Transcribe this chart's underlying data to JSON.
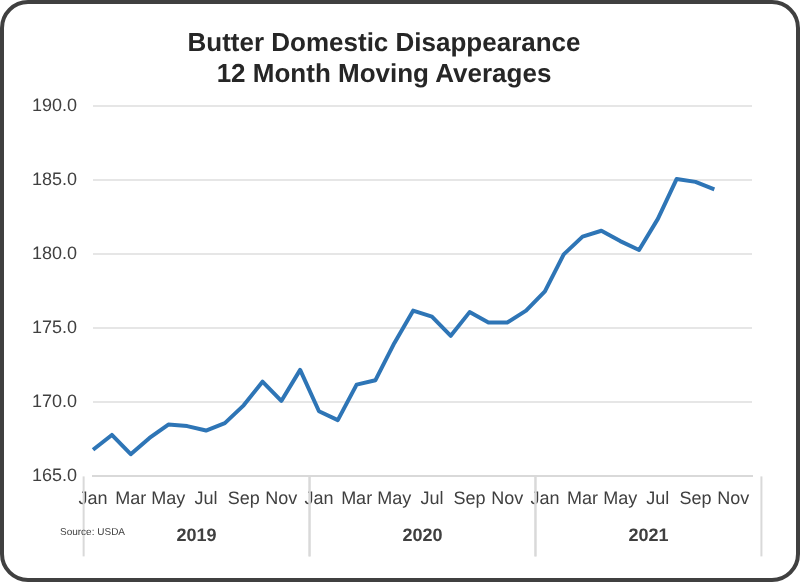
{
  "chart_data": {
    "type": "line",
    "title": "Butter Domestic Disappearance\n12 Month Moving Averages",
    "categories": [
      "Jan",
      null,
      "Mar",
      null,
      "May",
      null,
      "Jul",
      null,
      "Sep",
      null,
      "Nov",
      null,
      "Jan",
      null,
      "Mar",
      null,
      "May",
      null,
      "Jul",
      null,
      "Sep",
      null,
      "Nov",
      null,
      "Jan",
      null,
      "Mar",
      null,
      "May",
      null,
      "Jul",
      null,
      "Sep",
      null,
      "Nov",
      null
    ],
    "series": [
      {
        "color": "#2e75b6",
        "values": [
          166.8,
          167.8,
          166.5,
          167.6,
          168.5,
          168.4,
          168.1,
          168.6,
          169.8,
          171.4,
          170.1,
          172.2,
          169.4,
          168.8,
          171.2,
          171.5,
          174.0,
          176.2,
          175.8,
          174.5,
          176.1,
          175.4,
          175.4,
          176.2,
          177.5,
          180.0,
          181.2,
          181.6,
          180.9,
          180.3,
          182.4,
          185.1,
          184.9,
          184.4,
          null,
          null
        ]
      }
    ],
    "ylim": [
      165,
      190
    ],
    "yticks": [
      {
        "value": 165,
        "label": "165.0"
      },
      {
        "value": 170,
        "label": "170.0"
      },
      {
        "value": 175,
        "label": "175.0"
      },
      {
        "value": 180,
        "label": "180.0"
      },
      {
        "value": 185,
        "label": "185.0"
      },
      {
        "value": 190,
        "label": "190.0"
      }
    ],
    "grid": "y",
    "legend": false,
    "marker": "none",
    "line_style": "solid",
    "annotations": [
      "2019",
      "2020",
      "2021",
      "Source: USDA"
    ]
  }
}
